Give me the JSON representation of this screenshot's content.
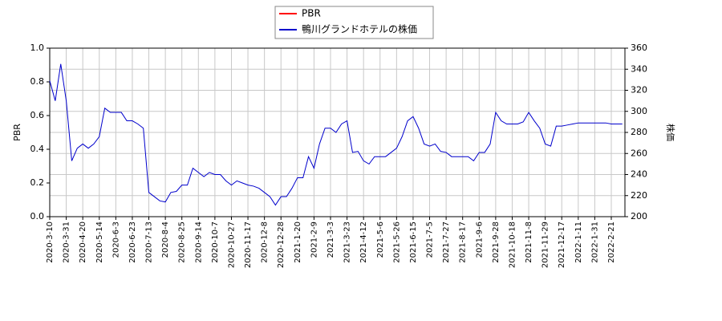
{
  "chart_data": {
    "type": "line",
    "y_label": "PBR",
    "y2_label": "株価",
    "categories": [
      "2020-3-10",
      null,
      null,
      "2020-3-31",
      null,
      null,
      "2020-4-20",
      null,
      null,
      "2020-5-14",
      null,
      null,
      "2020-6-3",
      null,
      null,
      "2020-6-23",
      null,
      null,
      "2020-7-13",
      null,
      null,
      "2020-8-4",
      null,
      null,
      "2020-8-25",
      null,
      null,
      "2020-9-14",
      null,
      null,
      "2020-10-7",
      null,
      null,
      "2020-10-27",
      null,
      null,
      "2020-11-17",
      null,
      null,
      "2020-12-8",
      null,
      null,
      "2020-12-28",
      null,
      null,
      "2021-1-20",
      null,
      null,
      "2021-2-9",
      null,
      null,
      "2021-3-3",
      null,
      null,
      "2021-3-23",
      null,
      null,
      "2021-4-12",
      null,
      null,
      "2021-5-6",
      null,
      null,
      "2021-5-26",
      null,
      null,
      "2021-6-15",
      null,
      null,
      "2021-7-5",
      null,
      null,
      "2021-7-27",
      null,
      null,
      "2021-8-17",
      null,
      null,
      "2021-9-6",
      null,
      null,
      "2021-9-28",
      null,
      null,
      "2021-10-18",
      null,
      null,
      "2021-11-8",
      null,
      null,
      "2021-11-29",
      null,
      null,
      "2021-12-17",
      null,
      null,
      "2022-1-11",
      null,
      null,
      "2022-1-31",
      null,
      null,
      "2022-2-21",
      null,
      null
    ],
    "series": [
      {
        "name": "PBR",
        "color": "#ff0000",
        "values": [
          null,
          null,
          null,
          null,
          null,
          null,
          null,
          null,
          null,
          null,
          null,
          null,
          null,
          null,
          null,
          null,
          null,
          null,
          null,
          null,
          null,
          null,
          null,
          null,
          null,
          null,
          null,
          null,
          null,
          null,
          null,
          null,
          null,
          null,
          null,
          null,
          null,
          null,
          null,
          null,
          null,
          null,
          null,
          null,
          null,
          null,
          null,
          null,
          null,
          null,
          null,
          null,
          null,
          null,
          null,
          null,
          null,
          null,
          null,
          null,
          null,
          null,
          null,
          null,
          null,
          null,
          null,
          null,
          null,
          null,
          null,
          null,
          null,
          null,
          null,
          null,
          null,
          null,
          null,
          null,
          null,
          null,
          null,
          null,
          null,
          null,
          null,
          null,
          null,
          null,
          null,
          null,
          null,
          null,
          null,
          null,
          null,
          null,
          null,
          null,
          null,
          null,
          null,
          null,
          null
        ]
      },
      {
        "name": "鴨川グランドホテルの株価",
        "color": "#0000cc",
        "axis": "y2",
        "values": [
          329,
          310,
          345,
          310,
          253,
          265,
          269,
          265,
          269,
          276,
          303,
          299,
          299,
          299,
          291,
          291,
          288,
          284,
          223,
          219,
          215,
          214,
          223,
          224,
          230,
          230,
          246,
          242,
          238,
          242,
          240,
          240,
          234,
          230,
          234,
          232,
          230,
          229,
          227,
          223,
          219,
          211,
          219,
          219,
          227,
          237,
          237,
          257,
          246,
          269,
          284,
          284,
          280,
          288,
          291,
          261,
          262,
          253,
          250,
          257,
          257,
          257,
          261,
          265,
          276,
          291,
          295,
          284,
          269,
          267,
          269,
          262,
          261,
          257,
          257,
          257,
          257,
          253,
          261,
          261,
          269,
          299,
          291,
          288,
          288,
          288,
          290,
          299,
          291,
          284,
          269,
          267,
          286,
          286,
          287,
          288,
          289,
          289,
          289,
          289,
          289,
          289,
          288,
          288,
          288
        ]
      }
    ],
    "ylim": [
      0,
      1
    ],
    "yticks": [
      {
        "value": 0,
        "label": "0.0"
      },
      {
        "value": 0.2,
        "label": "0.2"
      },
      {
        "value": 0.4,
        "label": "0.4"
      },
      {
        "value": 0.6,
        "label": "0.6"
      },
      {
        "value": 0.8,
        "label": "0.8"
      },
      {
        "value": 1,
        "label": "1.0"
      }
    ],
    "y2lim": [
      200,
      360
    ],
    "y2ticks": [
      200,
      220,
      240,
      260,
      280,
      300,
      320,
      340,
      360
    ],
    "grid": true,
    "legend": "top"
  }
}
